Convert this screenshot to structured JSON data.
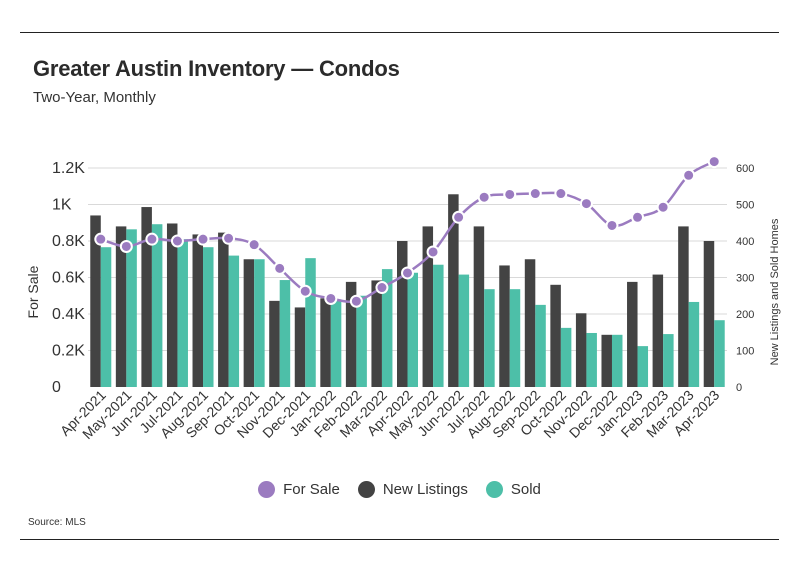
{
  "header": {
    "title": "Greater Austin Inventory — Condos",
    "subtitle": "Two-Year, Monthly"
  },
  "footer": {
    "source": "Source: MLS"
  },
  "colors": {
    "for_sale": "#9b7bc0",
    "new_listings": "#434343",
    "sold": "#4dbfa8",
    "grid": "#d9d9d9"
  },
  "legend": {
    "position": "bottom-center",
    "items": [
      {
        "label": "For Sale",
        "color": "#9b7bc0"
      },
      {
        "label": "New Listings",
        "color": "#434343"
      },
      {
        "label": "Sold",
        "color": "#4dbfa8"
      }
    ]
  },
  "chart_data": {
    "type": "bar",
    "title": "Greater Austin Inventory — Condos",
    "subtitle": "Two-Year, Monthly",
    "ylabel": "For Sale",
    "y2label": "New Listings and Sold Homes",
    "ylim": [
      0,
      1200
    ],
    "y2lim": [
      0,
      600
    ],
    "yticks": [
      "0",
      "0.2K",
      "0.4K",
      "0.6K",
      "0.8K",
      "1K",
      "1.2K"
    ],
    "y2ticks": [
      "0",
      "100",
      "200",
      "300",
      "400",
      "500",
      "600"
    ],
    "grid": true,
    "categories": [
      "Apr-2021",
      "May-2021",
      "Jun-2021",
      "Jul-2021",
      "Aug-2021",
      "Sep-2021",
      "Oct-2021",
      "Nov-2021",
      "Dec-2021",
      "Jan-2022",
      "Feb-2022",
      "Mar-2022",
      "Apr-2022",
      "May-2022",
      "Jun-2022",
      "Jul-2022",
      "Aug-2022",
      "Sep-2022",
      "Oct-2022",
      "Nov-2022",
      "Dec-2022",
      "Jan-2023",
      "Feb-2023",
      "Mar-2023",
      "Apr-2023"
    ],
    "series": [
      {
        "name": "New Listings",
        "type": "bar",
        "axis": "right",
        "values": [
          470,
          440,
          493,
          448,
          418,
          423,
          350,
          236,
          218,
          243,
          288,
          292,
          400,
          440,
          528,
          440,
          333,
          350,
          280,
          202,
          143,
          288,
          308,
          440,
          400
        ]
      },
      {
        "name": "Sold",
        "type": "bar",
        "axis": "right",
        "values": [
          383,
          432,
          446,
          405,
          383,
          360,
          350,
          293,
          353,
          240,
          250,
          323,
          313,
          335,
          308,
          268,
          268,
          225,
          162,
          148,
          143,
          112,
          145,
          233,
          183
        ]
      },
      {
        "name": "For Sale",
        "type": "line",
        "axis": "left",
        "values": [
          810,
          770,
          810,
          800,
          810,
          815,
          780,
          650,
          525,
          485,
          470,
          545,
          625,
          740,
          930,
          1040,
          1055,
          1060,
          1060,
          1005,
          885,
          930,
          985,
          1160,
          1235
        ]
      }
    ]
  }
}
